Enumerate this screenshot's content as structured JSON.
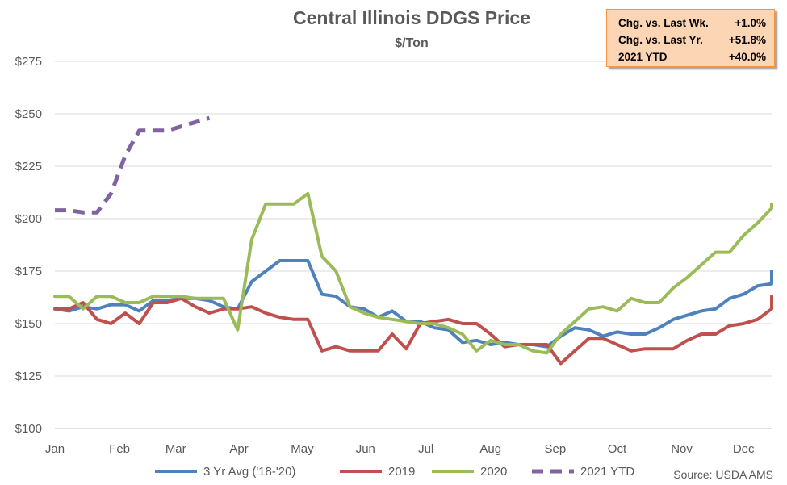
{
  "chart_data": {
    "type": "line",
    "title": "Central Illinois DDGS Price",
    "subtitle": "$/Ton",
    "ylim": [
      100,
      280
    ],
    "yticks": [
      100,
      125,
      150,
      175,
      200,
      225,
      250,
      275
    ],
    "ytick_labels": [
      "$100",
      "$125",
      "$150",
      "$175",
      "$200",
      "$225",
      "$250",
      "$275"
    ],
    "x_range": [
      1,
      52
    ],
    "month_ticks": [
      {
        "label": "Jan",
        "week": 1
      },
      {
        "label": "Feb",
        "week": 5.6
      },
      {
        "label": "Mar",
        "week": 9.6
      },
      {
        "label": "Apr",
        "week": 14.1
      },
      {
        "label": "May",
        "week": 18.6
      },
      {
        "label": "Jun",
        "week": 23.1
      },
      {
        "label": "Jul",
        "week": 27.4
      },
      {
        "label": "Aug",
        "week": 32
      },
      {
        "label": "Sep",
        "week": 36.6
      },
      {
        "label": "Oct",
        "week": 41
      },
      {
        "label": "Nov",
        "week": 45.6
      },
      {
        "label": "Dec",
        "week": 50
      }
    ],
    "series": [
      {
        "name": "3 Yr Avg ('18-'20)",
        "color": "#4f81bd",
        "dashed": false,
        "values": [
          157,
          156,
          158,
          157,
          159,
          159,
          156,
          161,
          161,
          162,
          162,
          161,
          158,
          157,
          170,
          175,
          180,
          180,
          180,
          164,
          163,
          158,
          157,
          153,
          156,
          151,
          151,
          148,
          147,
          141,
          142,
          140,
          141,
          140,
          140,
          139,
          144,
          148,
          147,
          144,
          146,
          145,
          145,
          148,
          152,
          154,
          156,
          157,
          162,
          164,
          168,
          169,
          175
        ]
      },
      {
        "name": "2019",
        "color": "#c0504d",
        "dashed": false,
        "values": [
          157,
          157,
          160,
          152,
          150,
          155,
          150,
          160,
          160,
          162,
          158,
          155,
          157,
          157,
          158,
          155,
          153,
          152,
          152,
          137,
          139,
          137,
          137,
          137,
          145,
          138,
          150,
          151,
          152,
          150,
          150,
          145,
          139,
          140,
          140,
          140,
          131,
          137,
          143,
          143,
          140,
          137,
          138,
          138,
          138,
          142,
          145,
          145,
          149,
          150,
          152,
          157,
          157,
          163
        ]
      },
      {
        "name": "2020",
        "color": "#9bbb59",
        "dashed": false,
        "values": [
          163,
          163,
          157,
          163,
          163,
          160,
          160,
          163,
          163,
          163,
          162,
          162,
          162,
          147,
          190,
          207,
          207,
          207,
          212,
          182,
          175,
          158,
          155,
          153,
          152,
          151,
          150,
          150,
          148,
          145,
          137,
          142,
          140,
          140,
          137,
          136,
          145,
          151,
          157,
          158,
          156,
          162,
          160,
          160,
          167,
          172,
          178,
          184,
          184,
          192,
          198,
          205,
          207,
          205
        ]
      },
      {
        "name": "2021 YTD",
        "color": "#8064a2",
        "dashed": true,
        "values": [
          204,
          204,
          203,
          203,
          212,
          230,
          242,
          242,
          242,
          244,
          246,
          248
        ]
      }
    ]
  },
  "stats": [
    {
      "label": "Chg. vs. Last Wk.",
      "value": "+1.0%"
    },
    {
      "label": "Chg. vs. Last Yr.",
      "value": "+51.8%"
    },
    {
      "label": "2021 YTD",
      "value": "+40.0%"
    }
  ],
  "source": "Source: USDA AMS"
}
